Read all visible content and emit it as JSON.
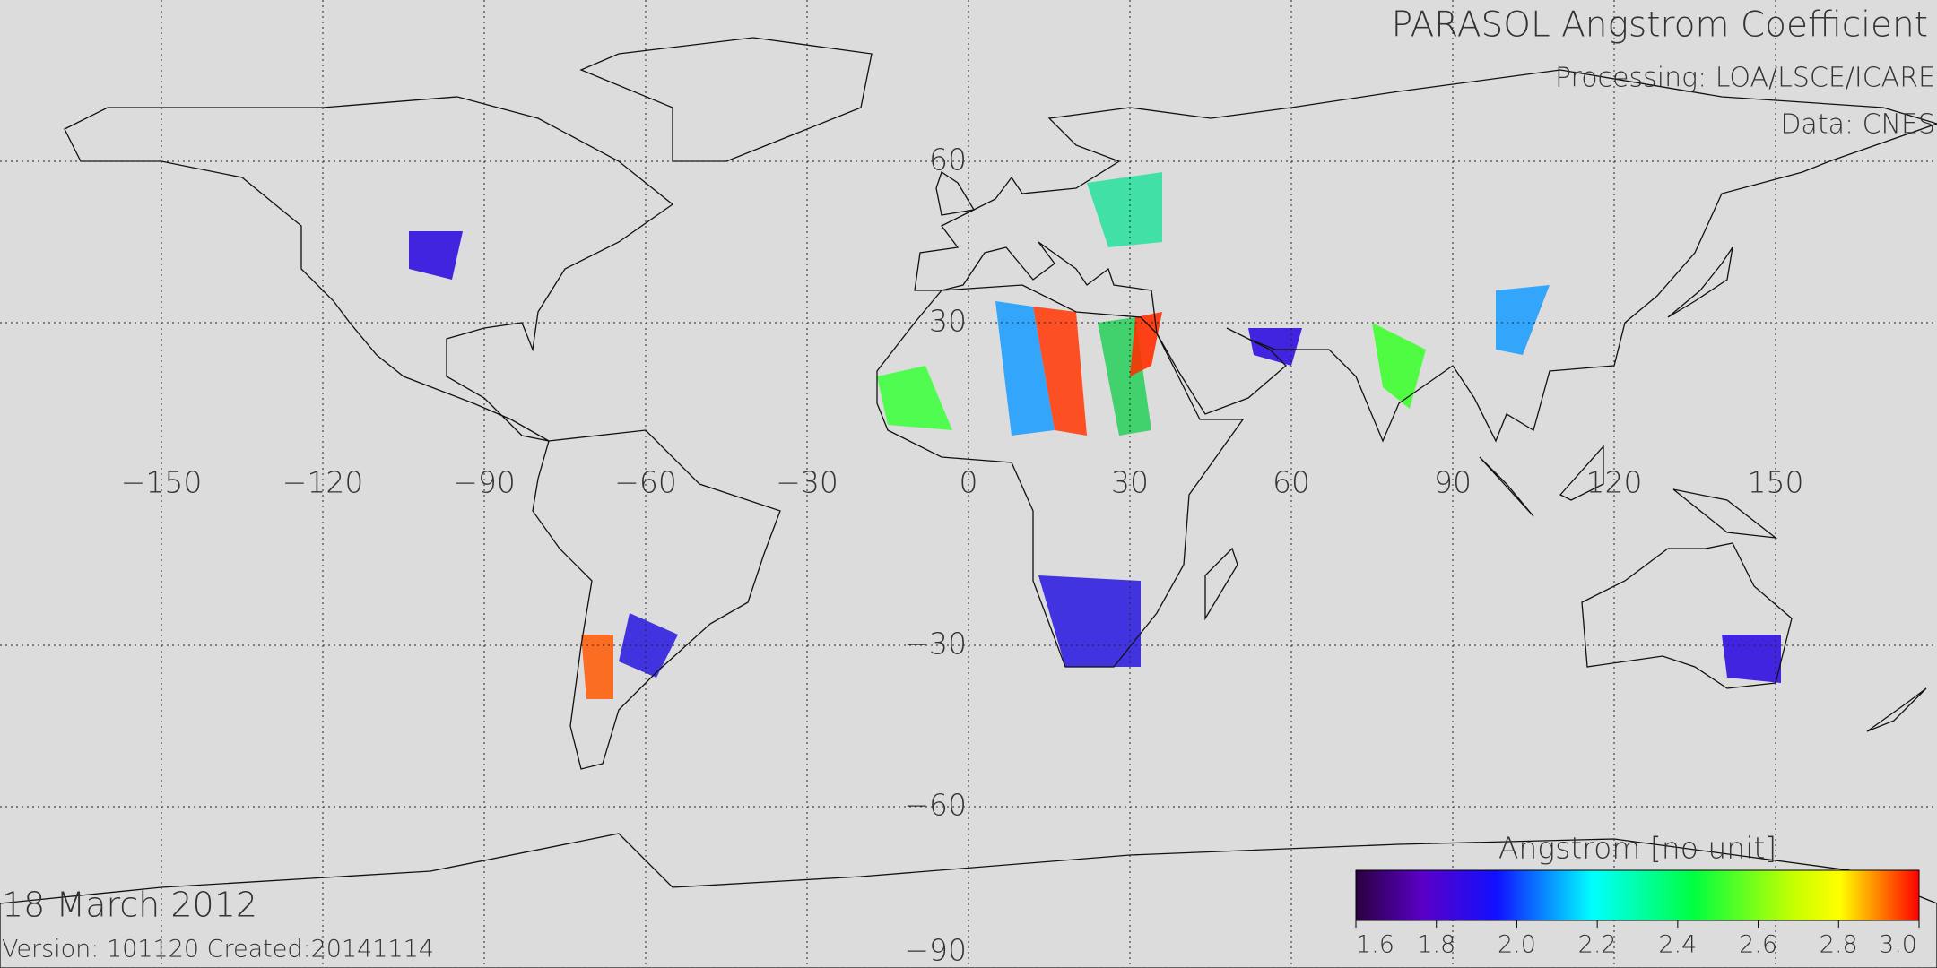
{
  "header": {
    "title": "PARASOL Angstrom Coefficient",
    "processing": "Processing: LOA/LSCE/ICARE",
    "data_source": "Data: CNES"
  },
  "footer": {
    "date": "18 March 2012",
    "version": "Version: 101120  Created:20141114"
  },
  "map": {
    "lon_ticks": [
      {
        "value": -150,
        "label": "−150"
      },
      {
        "value": -120,
        "label": "−120"
      },
      {
        "value": -90,
        "label": "−90"
      },
      {
        "value": -60,
        "label": "−60"
      },
      {
        "value": -30,
        "label": "−30"
      },
      0,
      30,
      60,
      90,
      120,
      150
    ],
    "lat_ticks": [
      60,
      30,
      {
        "value": -30,
        "label": "−30"
      },
      {
        "value": -60,
        "label": "−60"
      },
      {
        "value": -90,
        "label": "−90"
      }
    ]
  },
  "colorbar": {
    "label": "Angstrom [no unit]",
    "range": [
      1.6,
      3.0
    ],
    "ticks": [
      1.6,
      1.8,
      {
        "value": 2.0,
        "label": "2.0"
      },
      2.2,
      2.4,
      2.6,
      2.8,
      {
        "value": 3.0,
        "label": "3.0"
      }
    ]
  }
}
